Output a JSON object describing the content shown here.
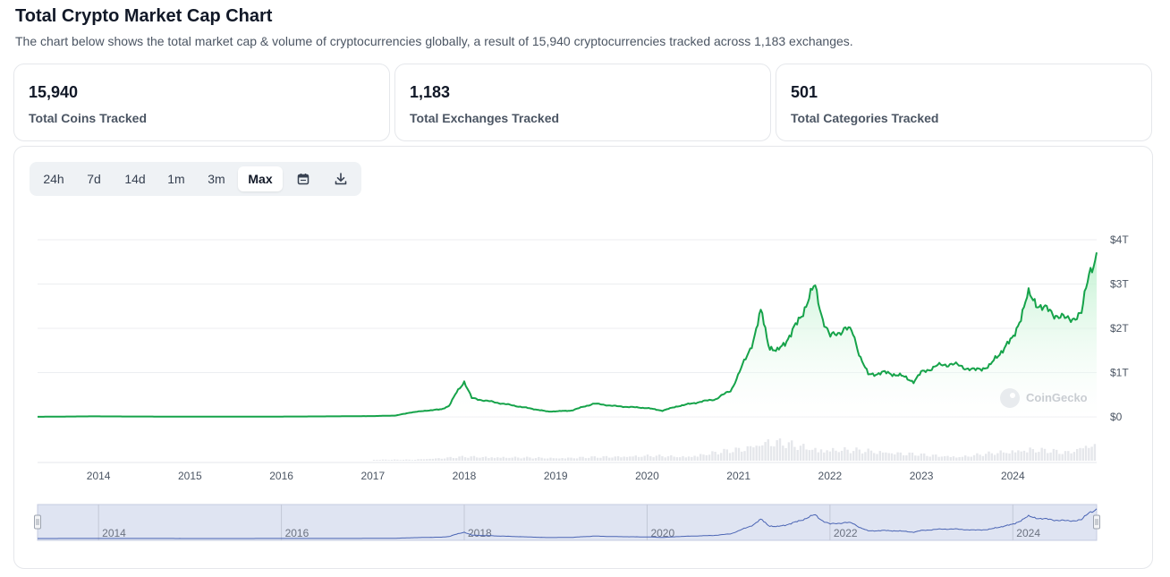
{
  "header": {
    "title": "Total Crypto Market Cap Chart",
    "description": "The chart below shows the total market cap & volume of cryptocurrencies globally, a result of 15,940 cryptocurrencies tracked across 1,183 exchanges."
  },
  "stats": [
    {
      "value": "15,940",
      "label": "Total Coins Tracked"
    },
    {
      "value": "1,183",
      "label": "Total Exchanges Tracked"
    },
    {
      "value": "501",
      "label": "Total Categories Tracked"
    }
  ],
  "range_buttons": [
    {
      "label": "24h",
      "active": false
    },
    {
      "label": "7d",
      "active": false
    },
    {
      "label": "14d",
      "active": false
    },
    {
      "label": "1m",
      "active": false
    },
    {
      "label": "3m",
      "active": false
    },
    {
      "label": "Max",
      "active": true
    }
  ],
  "icons": {
    "calendar": "calendar-icon",
    "download": "download-icon"
  },
  "watermark": "CoinGecko",
  "colors": {
    "line": "#16a34a",
    "area_top": "#bbf0cc",
    "volume": "#e5e7eb",
    "navigator_fill": "#dfe4f2",
    "navigator_line": "#4a64b4"
  },
  "chart_data": {
    "type": "area",
    "title": "",
    "xlabel": "",
    "ylabel": "",
    "x_ticks": [
      "2014",
      "2015",
      "2016",
      "2017",
      "2018",
      "2019",
      "2020",
      "2021",
      "2022",
      "2023",
      "2024"
    ],
    "y_ticks": [
      "$0",
      "$1T",
      "$2T",
      "$3T",
      "$4T"
    ],
    "ylim": [
      0,
      4
    ],
    "y_unit": "trillion USD",
    "grid": true,
    "series": [
      {
        "x": [
          "2013-05",
          "2013-12",
          "2014-06",
          "2015-01",
          "2015-06",
          "2016-01",
          "2016-06",
          "2017-01",
          "2017-04",
          "2017-06",
          "2017-08",
          "2017-10",
          "2017-11",
          "2017-12",
          "2018-01",
          "2018-02",
          "2018-04",
          "2018-06",
          "2018-09",
          "2018-12",
          "2019-03",
          "2019-06",
          "2019-09",
          "2020-01",
          "2020-03",
          "2020-05",
          "2020-08",
          "2020-10",
          "2020-12",
          "2021-01",
          "2021-02",
          "2021-03",
          "2021-04",
          "2021-05",
          "2021-06",
          "2021-08",
          "2021-09",
          "2021-10",
          "2021-11",
          "2021-12",
          "2022-01",
          "2022-03",
          "2022-04",
          "2022-05",
          "2022-06",
          "2022-08",
          "2022-10",
          "2022-12",
          "2023-01",
          "2023-03",
          "2023-05",
          "2023-08",
          "2023-10",
          "2023-12",
          "2024-01",
          "2024-03",
          "2024-05",
          "2024-08",
          "2024-10",
          "2024-11",
          "2024-12"
        ],
        "values": [
          0.0015,
          0.012,
          0.008,
          0.005,
          0.004,
          0.007,
          0.01,
          0.018,
          0.03,
          0.1,
          0.14,
          0.17,
          0.25,
          0.55,
          0.8,
          0.42,
          0.36,
          0.3,
          0.21,
          0.12,
          0.14,
          0.3,
          0.24,
          0.2,
          0.14,
          0.24,
          0.34,
          0.4,
          0.6,
          0.95,
          1.35,
          1.75,
          2.4,
          1.6,
          1.45,
          1.9,
          2.2,
          2.6,
          2.95,
          2.25,
          1.8,
          2.0,
          1.9,
          1.35,
          0.95,
          1.0,
          0.95,
          0.8,
          1.0,
          1.15,
          1.2,
          1.05,
          1.15,
          1.6,
          1.75,
          2.75,
          2.45,
          2.2,
          2.3,
          3.3,
          3.6
        ]
      }
    ],
    "volume": {
      "note": "relative daily volume bars",
      "x": [
        "2017-06",
        "2018-01",
        "2019-01",
        "2020-01",
        "2020-06",
        "2021-01",
        "2021-05",
        "2021-11",
        "2022-06",
        "2023-01",
        "2023-06",
        "2024-03",
        "2024-08",
        "2024-11"
      ],
      "values": [
        0.03,
        0.12,
        0.08,
        0.15,
        0.12,
        0.35,
        0.6,
        0.35,
        0.3,
        0.18,
        0.12,
        0.35,
        0.25,
        0.5
      ]
    },
    "navigator": {
      "labels": [
        "2014",
        "2016",
        "2018",
        "2020",
        "2022",
        "2024"
      ]
    }
  }
}
